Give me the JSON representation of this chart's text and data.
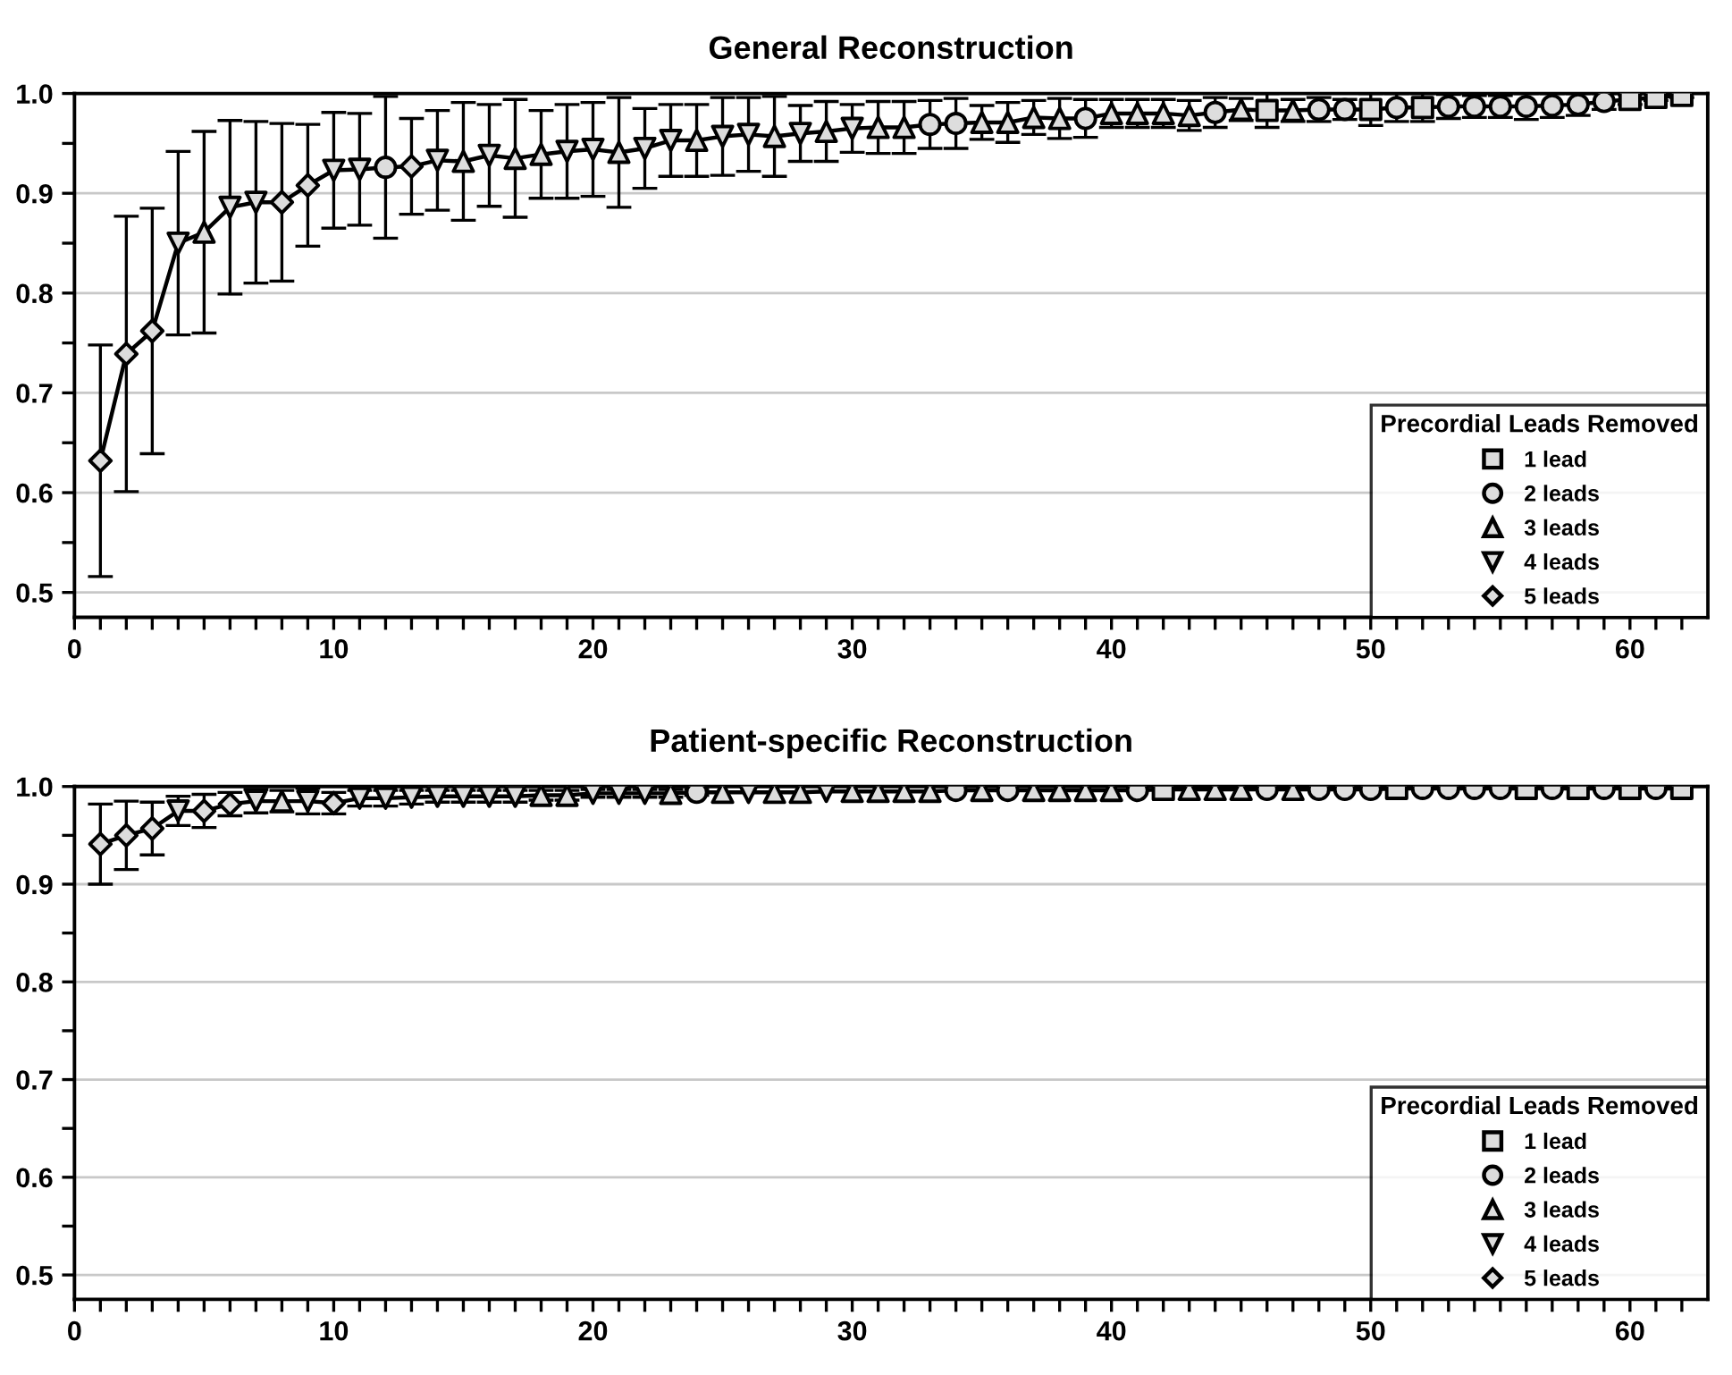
{
  "chart_data": [
    {
      "type": "line",
      "title": "General Reconstruction",
      "xlim": [
        0,
        63
      ],
      "ylim": [
        0.475,
        1.0
      ],
      "xticks": [
        0,
        {
          "value": 1,
          "label": null
        },
        {
          "value": 2,
          "label": null
        },
        {
          "value": 3,
          "label": null
        },
        {
          "value": 4,
          "label": null
        },
        {
          "value": 5,
          "label": null
        },
        {
          "value": 6,
          "label": null
        },
        {
          "value": 7,
          "label": null
        },
        {
          "value": 8,
          "label": null
        },
        {
          "value": 9,
          "label": null
        },
        10,
        {
          "value": 11,
          "label": null
        },
        {
          "value": 12,
          "label": null
        },
        {
          "value": 13,
          "label": null
        },
        {
          "value": 14,
          "label": null
        },
        {
          "value": 15,
          "label": null
        },
        {
          "value": 16,
          "label": null
        },
        {
          "value": 17,
          "label": null
        },
        {
          "value": 18,
          "label": null
        },
        {
          "value": 19,
          "label": null
        },
        20,
        {
          "value": 21,
          "label": null
        },
        {
          "value": 22,
          "label": null
        },
        {
          "value": 23,
          "label": null
        },
        {
          "value": 24,
          "label": null
        },
        {
          "value": 25,
          "label": null
        },
        {
          "value": 26,
          "label": null
        },
        {
          "value": 27,
          "label": null
        },
        {
          "value": 28,
          "label": null
        },
        {
          "value": 29,
          "label": null
        },
        30,
        {
          "value": 31,
          "label": null
        },
        {
          "value": 32,
          "label": null
        },
        {
          "value": 33,
          "label": null
        },
        {
          "value": 34,
          "label": null
        },
        {
          "value": 35,
          "label": null
        },
        {
          "value": 36,
          "label": null
        },
        {
          "value": 37,
          "label": null
        },
        {
          "value": 38,
          "label": null
        },
        {
          "value": 39,
          "label": null
        },
        40,
        {
          "value": 41,
          "label": null
        },
        {
          "value": 42,
          "label": null
        },
        {
          "value": 43,
          "label": null
        },
        {
          "value": 44,
          "label": null
        },
        {
          "value": 45,
          "label": null
        },
        {
          "value": 46,
          "label": null
        },
        {
          "value": 47,
          "label": null
        },
        {
          "value": 48,
          "label": null
        },
        {
          "value": 49,
          "label": null
        },
        50,
        {
          "value": 51,
          "label": null
        },
        {
          "value": 52,
          "label": null
        },
        {
          "value": 53,
          "label": null
        },
        {
          "value": 54,
          "label": null
        },
        {
          "value": 55,
          "label": null
        },
        {
          "value": 56,
          "label": null
        },
        {
          "value": 57,
          "label": null
        },
        {
          "value": 58,
          "label": null
        },
        {
          "value": 59,
          "label": null
        },
        60,
        {
          "value": 61,
          "label": null
        },
        {
          "value": 62,
          "label": null
        }
      ],
      "yticks": [
        0.5,
        {
          "value": 0.55,
          "label": null
        },
        0.6,
        {
          "value": 0.65,
          "label": null
        },
        0.7,
        {
          "value": 0.75,
          "label": null
        },
        0.8,
        {
          "value": 0.85,
          "label": null
        },
        0.9,
        {
          "value": 0.95,
          "label": null
        },
        {
          "value": 1.0,
          "label": "1.0"
        }
      ],
      "grid": "y",
      "legend": "bottom right",
      "legend_title": "Precordial Leads Removed",
      "series": [
        {
          "type": "line",
          "color": "#000000",
          "marker": "none",
          "x": [
            1,
            2,
            3,
            4,
            5,
            6,
            7,
            8,
            9,
            10,
            11,
            12,
            13,
            14,
            15,
            16,
            17,
            18,
            19,
            20,
            21,
            22,
            23,
            24,
            25,
            26,
            27,
            28,
            29,
            30,
            31,
            32,
            33,
            34,
            35,
            36,
            37,
            38,
            39,
            40,
            41,
            42,
            43,
            44,
            45,
            46,
            47,
            48,
            49,
            50,
            51,
            52,
            53,
            54,
            55,
            56,
            57,
            58,
            59,
            60,
            61,
            62
          ],
          "values": [
            0.632,
            0.739,
            0.762,
            0.85,
            0.861,
            0.886,
            0.891,
            0.891,
            0.908,
            0.923,
            0.924,
            0.926,
            0.927,
            0.933,
            0.932,
            0.938,
            0.935,
            0.939,
            0.942,
            0.944,
            0.941,
            0.945,
            0.953,
            0.953,
            0.957,
            0.959,
            0.957,
            0.96,
            0.962,
            0.965,
            0.966,
            0.966,
            0.969,
            0.97,
            0.971,
            0.971,
            0.976,
            0.975,
            0.975,
            0.98,
            0.98,
            0.98,
            0.978,
            0.981,
            0.984,
            0.983,
            0.983,
            0.984,
            0.984,
            0.984,
            0.986,
            0.986,
            0.987,
            0.987,
            0.987,
            0.987,
            0.988,
            0.989,
            0.992,
            0.994,
            0.996,
            0.998
          ],
          "errors": [
            0.116,
            0.138,
            0.123,
            0.092,
            0.101,
            0.087,
            0.081,
            0.079,
            0.061,
            0.058,
            0.056,
            0.071,
            0.048,
            0.05,
            0.059,
            0.051,
            0.059,
            0.044,
            0.047,
            0.047,
            0.055,
            0.04,
            0.036,
            0.036,
            0.039,
            0.037,
            0.04,
            0.028,
            0.03,
            0.024,
            0.026,
            0.026,
            0.024,
            0.025,
            0.017,
            0.02,
            0.017,
            0.02,
            0.019,
            0.014,
            0.014,
            0.014,
            0.015,
            0.015,
            0.011,
            0.017,
            0.011,
            0.012,
            0.01,
            0.016,
            0.014,
            0.014,
            0.012,
            0.011,
            0.011,
            0.013,
            0.012,
            0.011,
            0.008,
            0.005,
            0.003,
            0.002
          ]
        },
        {
          "type": "scatter",
          "name": "1 lead",
          "marker": "square",
          "color": "#dddddd",
          "x": [
            46,
            50,
            52,
            60,
            61,
            62
          ],
          "values": [
            0.983,
            0.984,
            0.986,
            0.994,
            0.996,
            0.998
          ]
        },
        {
          "type": "scatter",
          "name": "2 leads",
          "marker": "circle",
          "color": "#dddddd",
          "x": [
            12,
            33,
            34,
            39,
            44,
            48,
            49,
            51,
            53,
            54,
            55,
            56,
            57,
            58,
            59
          ],
          "values": [
            0.926,
            0.969,
            0.97,
            0.975,
            0.981,
            0.984,
            0.984,
            0.986,
            0.987,
            0.987,
            0.987,
            0.987,
            0.988,
            0.989,
            0.992
          ]
        },
        {
          "type": "scatter",
          "name": "3 leads",
          "marker": "triangle",
          "color": "#dddddd",
          "x": [
            5,
            15,
            17,
            18,
            21,
            24,
            27,
            29,
            31,
            32,
            35,
            36,
            37,
            38,
            40,
            41,
            42,
            43,
            45,
            47
          ],
          "values": [
            0.861,
            0.932,
            0.935,
            0.939,
            0.941,
            0.953,
            0.957,
            0.962,
            0.966,
            0.966,
            0.971,
            0.971,
            0.976,
            0.975,
            0.98,
            0.98,
            0.98,
            0.978,
            0.984,
            0.983
          ]
        },
        {
          "type": "scatter",
          "name": "4 leads",
          "marker": "triangle-down",
          "color": "#dddddd",
          "x": [
            4,
            6,
            7,
            10,
            11,
            14,
            16,
            19,
            20,
            22,
            23,
            25,
            26,
            28,
            30
          ],
          "values": [
            0.85,
            0.886,
            0.891,
            0.923,
            0.924,
            0.933,
            0.938,
            0.942,
            0.944,
            0.945,
            0.953,
            0.957,
            0.959,
            0.96,
            0.965
          ]
        },
        {
          "type": "scatter",
          "name": "5 leads",
          "marker": "diamond",
          "color": "#dddddd",
          "x": [
            1,
            2,
            3,
            8,
            9,
            13
          ],
          "values": [
            0.632,
            0.739,
            0.762,
            0.891,
            0.908,
            0.927
          ]
        }
      ]
    },
    {
      "type": "line",
      "title": "Patient-specific Reconstruction",
      "xlim": [
        0,
        63
      ],
      "ylim": [
        0.475,
        1.0
      ],
      "xticks": [
        0,
        {
          "value": 1,
          "label": null
        },
        {
          "value": 2,
          "label": null
        },
        {
          "value": 3,
          "label": null
        },
        {
          "value": 4,
          "label": null
        },
        {
          "value": 5,
          "label": null
        },
        {
          "value": 6,
          "label": null
        },
        {
          "value": 7,
          "label": null
        },
        {
          "value": 8,
          "label": null
        },
        {
          "value": 9,
          "label": null
        },
        10,
        {
          "value": 11,
          "label": null
        },
        {
          "value": 12,
          "label": null
        },
        {
          "value": 13,
          "label": null
        },
        {
          "value": 14,
          "label": null
        },
        {
          "value": 15,
          "label": null
        },
        {
          "value": 16,
          "label": null
        },
        {
          "value": 17,
          "label": null
        },
        {
          "value": 18,
          "label": null
        },
        {
          "value": 19,
          "label": null
        },
        20,
        {
          "value": 21,
          "label": null
        },
        {
          "value": 22,
          "label": null
        },
        {
          "value": 23,
          "label": null
        },
        {
          "value": 24,
          "label": null
        },
        {
          "value": 25,
          "label": null
        },
        {
          "value": 26,
          "label": null
        },
        {
          "value": 27,
          "label": null
        },
        {
          "value": 28,
          "label": null
        },
        {
          "value": 29,
          "label": null
        },
        30,
        {
          "value": 31,
          "label": null
        },
        {
          "value": 32,
          "label": null
        },
        {
          "value": 33,
          "label": null
        },
        {
          "value": 34,
          "label": null
        },
        {
          "value": 35,
          "label": null
        },
        {
          "value": 36,
          "label": null
        },
        {
          "value": 37,
          "label": null
        },
        {
          "value": 38,
          "label": null
        },
        {
          "value": 39,
          "label": null
        },
        40,
        {
          "value": 41,
          "label": null
        },
        {
          "value": 42,
          "label": null
        },
        {
          "value": 43,
          "label": null
        },
        {
          "value": 44,
          "label": null
        },
        {
          "value": 45,
          "label": null
        },
        {
          "value": 46,
          "label": null
        },
        {
          "value": 47,
          "label": null
        },
        {
          "value": 48,
          "label": null
        },
        {
          "value": 49,
          "label": null
        },
        50,
        {
          "value": 51,
          "label": null
        },
        {
          "value": 52,
          "label": null
        },
        {
          "value": 53,
          "label": null
        },
        {
          "value": 54,
          "label": null
        },
        {
          "value": 55,
          "label": null
        },
        {
          "value": 56,
          "label": null
        },
        {
          "value": 57,
          "label": null
        },
        {
          "value": 58,
          "label": null
        },
        {
          "value": 59,
          "label": null
        },
        60,
        {
          "value": 61,
          "label": null
        },
        {
          "value": 62,
          "label": null
        }
      ],
      "yticks": [
        0.5,
        {
          "value": 0.55,
          "label": null
        },
        0.6,
        {
          "value": 0.65,
          "label": null
        },
        0.7,
        {
          "value": 0.75,
          "label": null
        },
        0.8,
        {
          "value": 0.85,
          "label": null
        },
        0.9,
        {
          "value": 0.95,
          "label": null
        },
        {
          "value": 1.0,
          "label": "1.0"
        }
      ],
      "grid": "y",
      "legend": "bottom right",
      "legend_title": "Precordial Leads Removed",
      "series": [
        {
          "type": "line",
          "color": "#000000",
          "marker": "none",
          "x": [
            1,
            2,
            3,
            4,
            5,
            6,
            7,
            8,
            9,
            10,
            11,
            12,
            13,
            14,
            15,
            16,
            17,
            18,
            19,
            20,
            21,
            22,
            23,
            24,
            25,
            26,
            27,
            28,
            29,
            30,
            31,
            32,
            33,
            34,
            35,
            36,
            37,
            38,
            39,
            40,
            41,
            42,
            43,
            44,
            45,
            46,
            47,
            48,
            49,
            50,
            51,
            52,
            53,
            54,
            55,
            56,
            57,
            58,
            59,
            60,
            61,
            62
          ],
          "values": [
            0.941,
            0.95,
            0.957,
            0.975,
            0.975,
            0.982,
            0.985,
            0.985,
            0.985,
            0.983,
            0.988,
            0.988,
            0.989,
            0.99,
            0.99,
            0.99,
            0.99,
            0.991,
            0.991,
            0.993,
            0.993,
            0.993,
            0.993,
            0.994,
            0.994,
            0.994,
            0.994,
            0.994,
            0.995,
            0.995,
            0.995,
            0.995,
            0.995,
            0.996,
            0.996,
            0.996,
            0.996,
            0.996,
            0.996,
            0.996,
            0.996,
            0.997,
            0.997,
            0.997,
            0.997,
            0.997,
            0.997,
            0.997,
            0.997,
            0.997,
            0.998,
            0.998,
            0.998,
            0.998,
            0.998,
            0.998,
            0.998,
            0.998,
            0.998,
            0.998,
            0.998,
            0.998
          ],
          "errors": [
            0.041,
            0.035,
            0.027,
            0.015,
            0.017,
            0.012,
            0.012,
            0.011,
            0.013,
            0.011,
            0.008,
            0.008,
            0.007,
            0.006,
            0.006,
            0.006,
            0.006,
            0.005,
            0.005,
            0.004,
            0.004,
            0.004,
            0.004,
            0.003,
            null,
            null,
            null,
            null,
            null,
            null,
            null,
            null,
            null,
            null,
            null,
            null,
            null,
            null,
            null,
            null,
            null,
            null,
            null,
            null,
            null,
            null,
            null,
            null,
            null,
            null,
            null,
            null,
            null,
            null,
            null,
            null,
            null,
            null,
            null,
            null,
            null,
            null
          ]
        },
        {
          "type": "scatter",
          "name": "1 lead",
          "marker": "square",
          "color": "#dddddd",
          "x": [
            42,
            51,
            56,
            58,
            60,
            62
          ],
          "values": [
            0.997,
            0.998,
            0.998,
            0.998,
            0.998,
            0.998
          ]
        },
        {
          "type": "scatter",
          "name": "2 leads",
          "marker": "circle",
          "color": "#dddddd",
          "x": [
            24,
            34,
            36,
            41,
            46,
            48,
            49,
            50,
            52,
            53,
            54,
            55,
            57,
            59,
            61
          ],
          "values": [
            0.994,
            0.996,
            0.996,
            0.996,
            0.997,
            0.997,
            0.997,
            0.997,
            0.998,
            0.998,
            0.998,
            0.998,
            0.998,
            0.998,
            0.998
          ]
        },
        {
          "type": "scatter",
          "name": "3 leads",
          "marker": "triangle",
          "color": "#dddddd",
          "x": [
            8,
            18,
            19,
            23,
            25,
            27,
            28,
            30,
            31,
            32,
            33,
            35,
            37,
            38,
            39,
            40,
            43,
            44,
            45,
            47
          ],
          "values": [
            0.985,
            0.991,
            0.991,
            0.993,
            0.994,
            0.994,
            0.994,
            0.995,
            0.995,
            0.995,
            0.995,
            0.996,
            0.996,
            0.996,
            0.996,
            0.996,
            0.997,
            0.997,
            0.997,
            0.997
          ]
        },
        {
          "type": "scatter",
          "name": "4 leads",
          "marker": "triangle-down",
          "color": "#dddddd",
          "x": [
            4,
            7,
            9,
            11,
            12,
            13,
            14,
            15,
            16,
            17,
            20,
            21,
            22,
            26,
            29
          ],
          "values": [
            0.975,
            0.985,
            0.985,
            0.988,
            0.988,
            0.989,
            0.99,
            0.99,
            0.99,
            0.99,
            0.993,
            0.993,
            0.993,
            0.994,
            0.995
          ]
        },
        {
          "type": "scatter",
          "name": "5 leads",
          "marker": "diamond",
          "color": "#dddddd",
          "x": [
            1,
            2,
            3,
            5,
            6,
            10
          ],
          "values": [
            0.941,
            0.95,
            0.957,
            0.975,
            0.982,
            0.983
          ]
        }
      ]
    }
  ]
}
